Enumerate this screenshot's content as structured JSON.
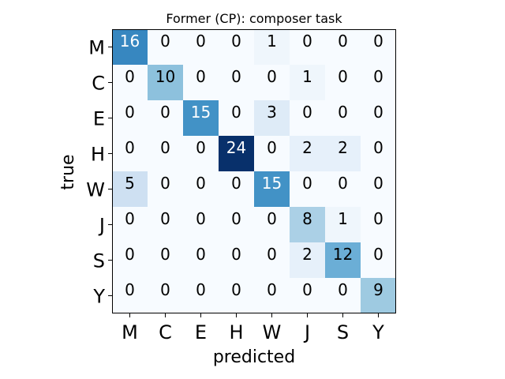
{
  "chart_data": {
    "type": "heatmap",
    "title": "Former (CP): composer task",
    "xlabel": "predicted",
    "ylabel": "true",
    "x_categories": [
      "M",
      "C",
      "E",
      "H",
      "W",
      "J",
      "S",
      "Y"
    ],
    "y_categories": [
      "M",
      "C",
      "E",
      "H",
      "W",
      "J",
      "S",
      "Y"
    ],
    "matrix": [
      [
        16,
        0,
        0,
        0,
        1,
        0,
        0,
        0
      ],
      [
        0,
        10,
        0,
        0,
        0,
        1,
        0,
        0
      ],
      [
        0,
        0,
        15,
        0,
        3,
        0,
        0,
        0
      ],
      [
        0,
        0,
        0,
        24,
        0,
        2,
        2,
        0
      ],
      [
        5,
        0,
        0,
        0,
        15,
        0,
        0,
        0
      ],
      [
        0,
        0,
        0,
        0,
        0,
        8,
        1,
        0
      ],
      [
        0,
        0,
        0,
        0,
        0,
        2,
        12,
        0
      ],
      [
        0,
        0,
        0,
        0,
        0,
        0,
        0,
        9
      ]
    ],
    "value_range": [
      0,
      24
    ],
    "colormap": "Blues",
    "grid": false
  }
}
